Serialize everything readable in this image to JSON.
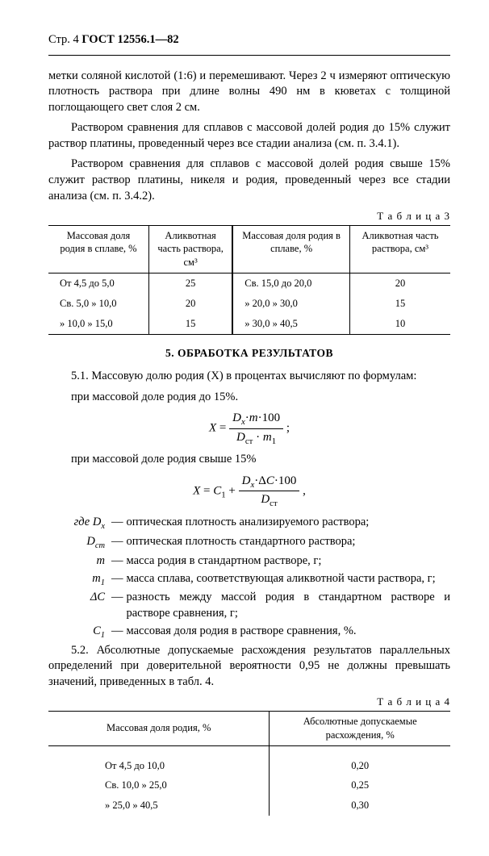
{
  "header": {
    "page_label": "Стр. 4",
    "standard": "ГОСТ 12556.1—82"
  },
  "para": {
    "p1": "метки соляной кислотой (1:6) и перемешивают. Через 2 ч измеряют оптическую плотность раствора при длине волны 490 нм в кюветах с толщиной поглощающего свет слоя 2 см.",
    "p2": "Раствором сравнения для сплавов с массовой долей родия до 15% служит раствор платины, проведенный через все стадии анализа (см. п. 3.4.1).",
    "p3": "Раствором сравнения для сплавов с массовой долей родия свыше 15% служит раствор платины, никеля и родия, проведенный через все стадии анализа (см. п. 3.4.2)."
  },
  "table3": {
    "label": "Т а б л и ц а  3",
    "h1": "Массовая доля родия в сплаве, %",
    "h2": "Аликвотная часть раствора, см³",
    "h3": "Массовая доля родия в сплаве, %",
    "h4": "Аликвотная часть раствора, см³",
    "rows": [
      {
        "c1": "От  4,5 до  5,0",
        "c2": "25",
        "c3": "Св. 15,0 до 20,0",
        "c4": "20"
      },
      {
        "c1": "Св. 5,0  »  10,0",
        "c2": "20",
        "c3": "»  20,0  »  30,0",
        "c4": "15"
      },
      {
        "c1": "»  10,0  »  15,0",
        "c2": "15",
        "c3": "»  30,0  »  40,5",
        "c4": "10"
      }
    ]
  },
  "section5": {
    "title": "5. ОБРАБОТКА РЕЗУЛЬТАТОВ",
    "p51_intro": "5.1. Массовую долю родия (X) в процентах вычисляют по формулам:",
    "p51_a": "при массовой доле родия до 15%.",
    "p51_b": "при массовой доле родия свыше 15%",
    "p52": "5.2. Абсолютные допускаемые расхождения результатов параллельных определений при доверительной вероятности 0,95 не должны превышать значений, приведенных в табл. 4.",
    "where_label": "где",
    "where": [
      {
        "sym": "Dₓ",
        "txt": "оптическая плотность анализируемого раствора;"
      },
      {
        "sym": "Dст",
        "txt": "оптическая плотность стандартного раствора;"
      },
      {
        "sym": "m",
        "txt": "масса родия в стандартном растворе, г;"
      },
      {
        "sym": "m₁",
        "txt": "масса сплава, соответствующая аликвотной части раствора, г;"
      },
      {
        "sym": "ΔC",
        "txt": "разность между массой родия в стандартном растворе и растворе сравнения, г;"
      },
      {
        "sym": "C₁",
        "txt": "массовая доля родия в растворе сравнения, %."
      }
    ]
  },
  "table4": {
    "label": "Т а б л и ц а  4",
    "h1": "Массовая доля родия, %",
    "h2": "Абсолютные допускаемые расхождения, %",
    "rows": [
      {
        "c1": "От  4,5 до 10,0",
        "c2": "0,20"
      },
      {
        "c1": "Св. 10,0  »  25,0",
        "c2": "0,25"
      },
      {
        "c1": "»  25,0  »  40,5",
        "c2": "0,30"
      }
    ]
  },
  "style": {
    "font_family": "Times New Roman",
    "body_font_size_pt": 11,
    "table_font_size_pt": 9.5,
    "text_color": "#000000",
    "background_color": "#ffffff",
    "rule_color": "#000000"
  }
}
